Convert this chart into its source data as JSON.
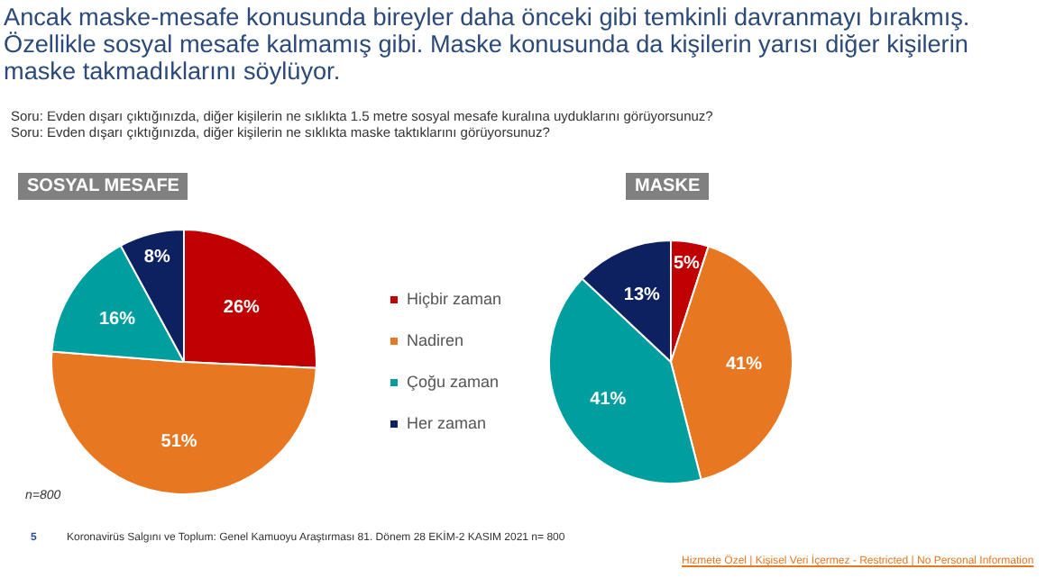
{
  "chart_data": [
    {
      "type": "other",
      "title": "Ancak maske-mesafe konusunda bireyler daha önceki gibi temkinli davranmayı bırakmış. Özellikle sosyal mesafe kalmamış gibi. Maske konusunda da kişilerin yarısı diğer kişilerin maske takmadıklarını söylüyor.",
      "annotations": [
        "Soru: Evden dışarı çıktığınızda, diğer kişilerin ne sıklıkta 1.5 metre sosyal mesafe kuralına uyduklarını görüyorsunuz?",
        "Soru: Evden dışarı çıktığınızda, diğer kişilerin ne sıklıkta maske taktıklarını görüyorsunuz?"
      ]
    },
    {
      "type": "pie",
      "title": "SOSYAL MESAFE",
      "categories": [
        "Hiçbir zaman",
        "Nadiren",
        "Çoğu zaman",
        "Her zaman"
      ],
      "values": [
        26,
        51,
        16,
        8
      ],
      "colors": [
        "#c00000",
        "#e87722",
        "#009e9e",
        "#0d2060"
      ],
      "value_labels": [
        "26%",
        "51%",
        "16%",
        "8%"
      ],
      "legend": "right",
      "annotations": [
        "n=800",
        "5",
        "Koronavirüs Salgını ve Toplum: Genel Kamuoyu Araştırması 81. Dönem 28 EKİM-2 KASIM 2021 n= 800",
        "Hizmete Özel | Kişisel Veri İçermez - Restricted | No Personal Information"
      ]
    },
    {
      "type": "pie",
      "title": "MASKE",
      "categories": [
        null,
        null,
        null,
        null
      ],
      "values": [
        5,
        41,
        41,
        13
      ],
      "colors": [
        "#c00000",
        "#e87722",
        "#009e9e",
        "#0d2060"
      ],
      "value_labels": [
        "5%",
        "41%",
        "41%",
        "13%"
      ]
    }
  ]
}
